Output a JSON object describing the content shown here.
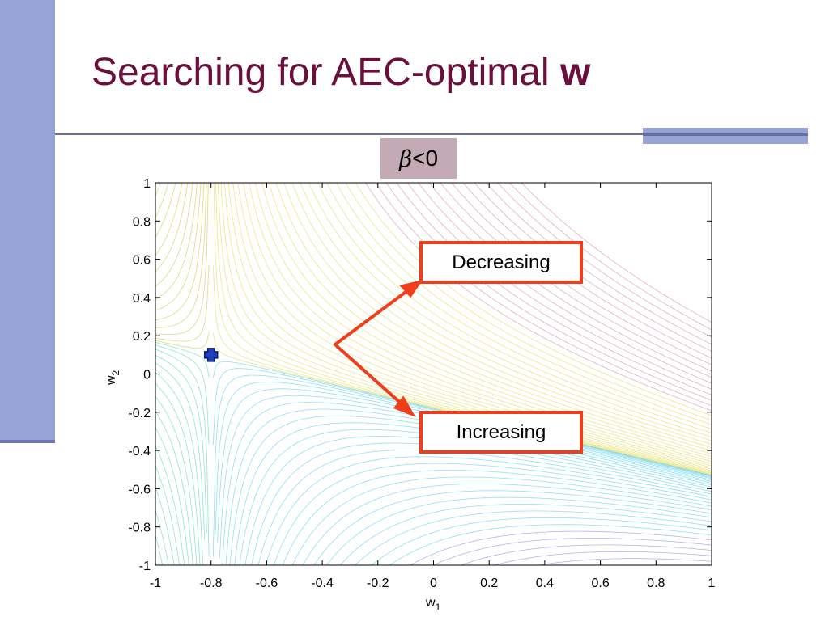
{
  "slide": {
    "title_main": "Searching for AEC-optimal ",
    "title_bold": "w",
    "condition_symbol": "β",
    "condition_rest": "<0"
  },
  "callouts": {
    "decreasing": "Decreasing",
    "increasing": "Increasing"
  },
  "colors": {
    "title": "#6b0f3c",
    "accent_band": "#97a3d4",
    "condition_box": "#c3aab4",
    "callout_arrow": "#ef3e1b",
    "marker": "#1f3fbf"
  },
  "chart_data": {
    "type": "contour",
    "xlabel": "w",
    "xlabel_sub": "1",
    "ylabel": "w",
    "ylabel_sub": "2",
    "xlim": [
      -1,
      1
    ],
    "ylim": [
      -1,
      1
    ],
    "xticks": [
      -1,
      -0.8,
      -0.6,
      -0.4,
      -0.2,
      0,
      0.2,
      0.4,
      0.6,
      0.8,
      1
    ],
    "yticks": [
      -1,
      -0.8,
      -0.6,
      -0.4,
      -0.2,
      0,
      0.2,
      0.4,
      0.6,
      0.8,
      1
    ],
    "grid": false,
    "marker": {
      "x": -0.8,
      "y": 0.1,
      "shape": "plus",
      "color": "#1f3fbf"
    },
    "contour_saddle": {
      "x": -0.8,
      "y": 0.1
    }
  }
}
